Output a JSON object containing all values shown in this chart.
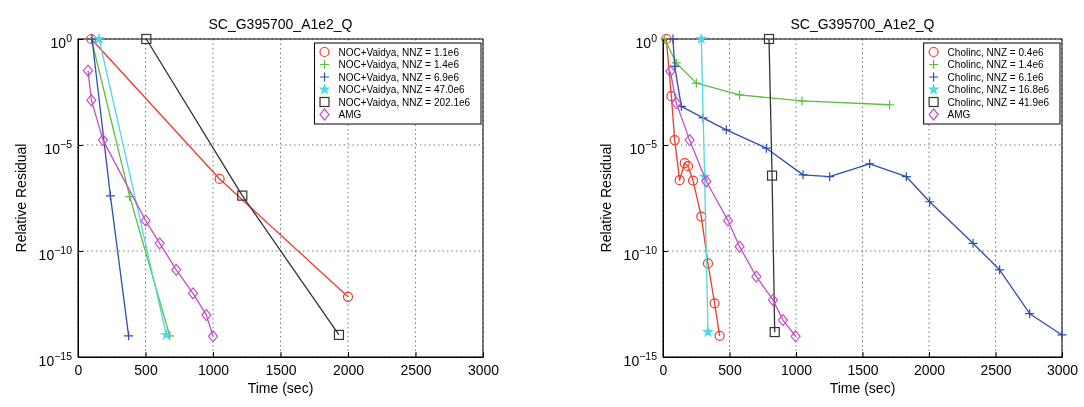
{
  "chart_data": [
    {
      "type": "line",
      "title": "SC_G395700_A1e2_Q",
      "xlabel": "Time (sec)",
      "ylabel": "Relative Residual",
      "log": "y",
      "grid": true,
      "legend": "top right",
      "line_style": "solid",
      "xlim": [
        0,
        3000
      ],
      "xticks": [
        0,
        500,
        1000,
        1500,
        2000,
        2500,
        3000
      ],
      "ylim": [
        1e-15,
        1
      ],
      "yticks": [
        {
          "value": 1e-15,
          "label": "10$^{−15}$"
        },
        {
          "value": 1e-10,
          "label": "10$^{−10}$"
        },
        {
          "value": 1e-05,
          "label": "10$^{−5}$"
        },
        {
          "value": 1,
          "label": "10$^{0}$"
        }
      ],
      "series": [
        {
          "name": "NOC+Vaidya, NNZ = 1.1e6",
          "color": "#ee3b2b",
          "marker": "circle",
          "x": [
            99,
            1049,
            2000
          ],
          "values": [
            1,
            2.5e-07,
            6.9e-13
          ]
        },
        {
          "name": "NOC+Vaidya, NNZ = 1.4e6",
          "color": "#5cbf3f",
          "marker": "cross",
          "x": [
            99,
            383,
            679
          ],
          "values": [
            1,
            3.7e-08,
            1e-14
          ]
        },
        {
          "name": "NOC+Vaidya, NNZ = 6.9e6",
          "color": "#2f4fb0",
          "marker": "cross",
          "x": [
            104,
            240,
            375
          ],
          "values": [
            1,
            4e-08,
            1e-14
          ]
        },
        {
          "name": "NOC+Vaidya, NNZ = 47.0e6",
          "color": "#4fd8e8",
          "marker": "star",
          "x": [
            156,
            654
          ],
          "values": [
            1,
            1.1e-14
          ]
        },
        {
          "name": "NOC+Vaidya, NNZ = 202.1e6",
          "color": "#333333",
          "marker": "square",
          "x": [
            506,
            1217,
            1933
          ],
          "values": [
            1,
            4.1e-08,
            1.1e-14
          ]
        },
        {
          "name": "AMG",
          "color": "#c64fc6",
          "marker": "diamond",
          "x": [
            74,
            99,
            185,
            501,
            605,
            728,
            852,
            951,
            1000
          ],
          "values": [
            0.032,
            0.0013,
            1.7e-05,
            2.7e-09,
            2.3e-10,
            1.3e-11,
            1e-12,
            9.5e-14,
            9.5e-15
          ]
        }
      ]
    },
    {
      "type": "line",
      "title": "SC_G395700_A1e2_Q",
      "xlabel": "Time (sec)",
      "ylabel": "Relative Residual",
      "log": "y",
      "grid": true,
      "legend": "top right",
      "line_style": "solid",
      "xlim": [
        0,
        3000
      ],
      "xticks": [
        0,
        500,
        1000,
        1500,
        2000,
        2500,
        3000
      ],
      "ylim": [
        1e-15,
        1
      ],
      "yticks": [
        {
          "value": 1e-15,
          "label": "10$^{−15}$"
        },
        {
          "value": 1e-10,
          "label": "10$^{−10}$"
        },
        {
          "value": 1e-05,
          "label": "10$^{−5}$"
        },
        {
          "value": 1,
          "label": "10$^{0}$"
        }
      ],
      "series": [
        {
          "name": "Cholinc, NNZ = 0.4e6",
          "color": "#ee3b2b",
          "marker": "circle",
          "x": [
            25,
            63,
            88,
            125,
            163,
            188,
            226,
            288,
            338,
            388,
            426
          ],
          "values": [
            1,
            0.002,
            1.7e-05,
            2.2e-07,
            1.4e-06,
            1e-06,
            2.1e-07,
            4.2e-09,
            2.6e-11,
            3.4e-13,
            1e-14
          ]
        },
        {
          "name": "Cholinc, NNZ = 1.4e6",
          "color": "#5cbf3f",
          "marker": "cross",
          "x": [
            13,
            100,
            251,
            576,
            1045,
            1704
          ],
          "values": [
            1,
            0.074,
            0.0083,
            0.0023,
            0.0012,
            0.00079
          ]
        },
        {
          "name": "Cholinc, NNZ = 6.1e6",
          "color": "#2f4fb0",
          "marker": "cross",
          "x": [
            75,
            88,
            138,
            301,
            476,
            777,
            1053,
            1253,
            1554,
            1830,
            2005,
            2331,
            2531,
            2757,
            3000
          ],
          "values": [
            1,
            0.051,
            0.00066,
            0.00019,
            5.2e-05,
            7.1e-06,
            3.9e-07,
            3.2e-07,
            1.3e-06,
            3.2e-07,
            2.1e-08,
            2.3e-10,
            1.3e-11,
            1.1e-13,
            1.1e-14
          ]
        },
        {
          "name": "Cholinc, NNZ = 16.8e6",
          "color": "#4fd8e8",
          "marker": "star",
          "x": [
            288,
            313,
            338
          ],
          "values": [
            1,
            3.2e-07,
            1.5e-14
          ]
        },
        {
          "name": "Cholinc, NNZ = 41.9e6",
          "color": "#333333",
          "marker": "square",
          "x": [
            797,
            820,
            840
          ],
          "values": [
            1,
            3.6e-07,
            1.5e-14
          ]
        },
        {
          "name": "AMG",
          "color": "#c64fc6",
          "marker": "diamond",
          "x": [
            55,
            100,
            200,
            326,
            489,
            576,
            702,
            827,
            902,
            997
          ],
          "values": [
            0.03,
            0.00095,
            1.7e-05,
            1.9e-07,
            2.7e-09,
            1.6e-10,
            6.2e-12,
            4.9e-13,
            5.5e-14,
            9.5e-15
          ]
        }
      ]
    }
  ]
}
